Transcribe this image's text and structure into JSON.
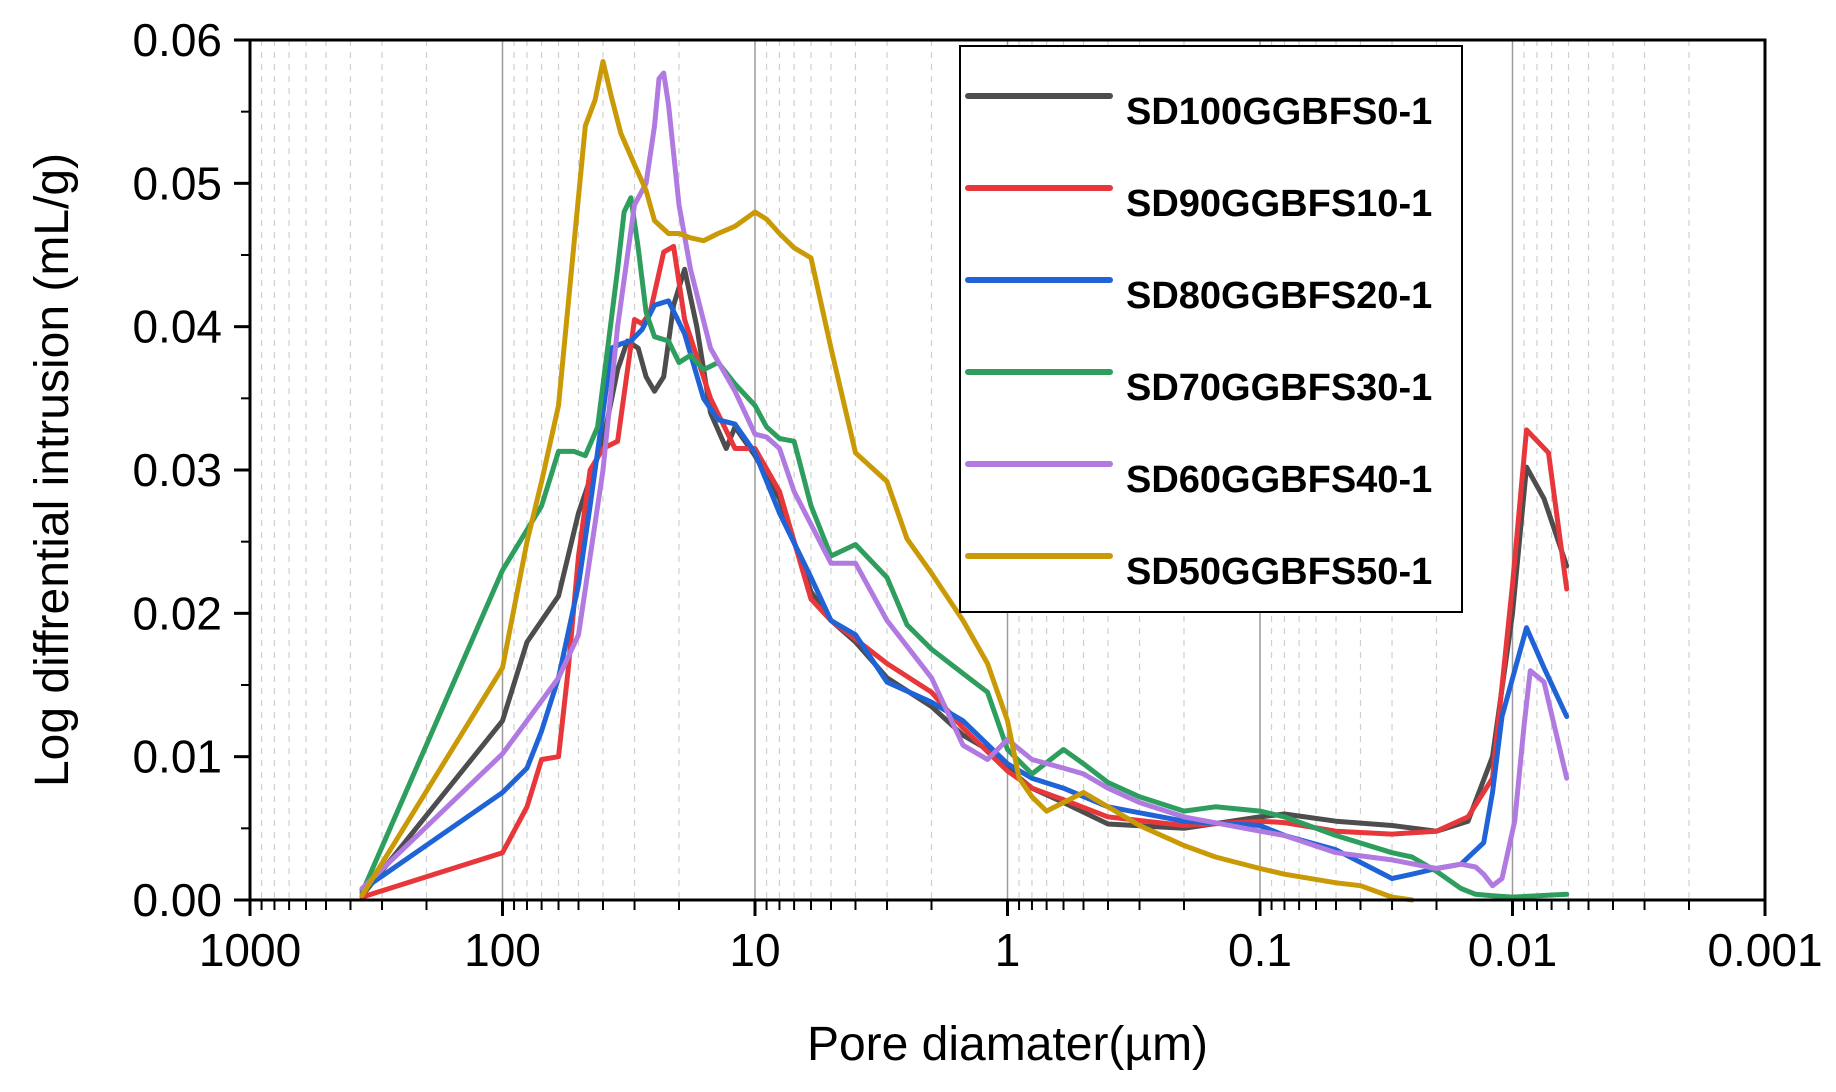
{
  "chart_data": {
    "type": "line",
    "xlabel": "Pore diamater(µm)",
    "ylabel": "Log diffrential intrusion (mL/g)",
    "x_scale": "log",
    "x_reversed": true,
    "xlim": [
      1000,
      0.001
    ],
    "ylim": [
      0,
      0.06
    ],
    "x_ticks": [
      {
        "value": 1000,
        "label": "1000"
      },
      {
        "value": 100,
        "label": "100"
      },
      {
        "value": 10,
        "label": "10"
      },
      {
        "value": 1,
        "label": "1"
      },
      {
        "value": 0.1,
        "label": "0.1"
      },
      {
        "value": 0.01,
        "label": "0.01"
      },
      {
        "value": 0.001,
        "label": "0.001"
      }
    ],
    "y_ticks": [
      {
        "value": 0,
        "label": "0.00"
      },
      {
        "value": 0.01,
        "label": "0.01"
      },
      {
        "value": 0.02,
        "label": "0.02"
      },
      {
        "value": 0.03,
        "label": "0.03"
      },
      {
        "value": 0.04,
        "label": "0.04"
      },
      {
        "value": 0.05,
        "label": "0.05"
      },
      {
        "value": 0.06,
        "label": "0.06"
      }
    ],
    "grid": true,
    "legend_position": "top-right",
    "series": [
      {
        "name": "SD100GGBFS0-1",
        "color": "#4d4d4d",
        "points": [
          [
            360,
            0.0003
          ],
          [
            100,
            0.0125
          ],
          [
            80,
            0.018
          ],
          [
            60,
            0.0212
          ],
          [
            50,
            0.027
          ],
          [
            40,
            0.032
          ],
          [
            35,
            0.037
          ],
          [
            32,
            0.039
          ],
          [
            29,
            0.0385
          ],
          [
            27,
            0.0365
          ],
          [
            25,
            0.0355
          ],
          [
            23,
            0.0365
          ],
          [
            21,
            0.0415
          ],
          [
            19,
            0.044
          ],
          [
            17,
            0.04
          ],
          [
            15,
            0.034
          ],
          [
            13,
            0.0315
          ],
          [
            12,
            0.033
          ],
          [
            10,
            0.031
          ],
          [
            8,
            0.028
          ],
          [
            6,
            0.0215
          ],
          [
            5,
            0.0195
          ],
          [
            4,
            0.018
          ],
          [
            3,
            0.0155
          ],
          [
            2,
            0.0135
          ],
          [
            1.5,
            0.0115
          ],
          [
            1.2,
            0.0105
          ],
          [
            1,
            0.0092
          ],
          [
            0.8,
            0.0078
          ],
          [
            0.6,
            0.0068
          ],
          [
            0.4,
            0.0053
          ],
          [
            0.2,
            0.005
          ],
          [
            0.1,
            0.0058
          ],
          [
            0.08,
            0.006
          ],
          [
            0.05,
            0.0055
          ],
          [
            0.03,
            0.0052
          ],
          [
            0.02,
            0.0048
          ],
          [
            0.015,
            0.0055
          ],
          [
            0.012,
            0.01
          ],
          [
            0.01,
            0.02
          ],
          [
            0.0088,
            0.0302
          ],
          [
            0.0075,
            0.028
          ],
          [
            0.0061,
            0.0233
          ]
        ]
      },
      {
        "name": "SD90GGBFS10-1",
        "color": "#e8373b",
        "points": [
          [
            360,
            0.0002
          ],
          [
            100,
            0.0033
          ],
          [
            80,
            0.0065
          ],
          [
            70,
            0.0098
          ],
          [
            60,
            0.01
          ],
          [
            55,
            0.016
          ],
          [
            50,
            0.024
          ],
          [
            45,
            0.03
          ],
          [
            40,
            0.0315
          ],
          [
            35,
            0.032
          ],
          [
            30,
            0.0405
          ],
          [
            28,
            0.0402
          ],
          [
            26,
            0.041
          ],
          [
            23,
            0.0452
          ],
          [
            21,
            0.0456
          ],
          [
            19,
            0.0405
          ],
          [
            15,
            0.035
          ],
          [
            12,
            0.0315
          ],
          [
            10,
            0.0315
          ],
          [
            8,
            0.0285
          ],
          [
            6,
            0.021
          ],
          [
            5,
            0.0195
          ],
          [
            4,
            0.0182
          ],
          [
            3,
            0.0165
          ],
          [
            2,
            0.0145
          ],
          [
            1.5,
            0.012
          ],
          [
            1,
            0.009
          ],
          [
            0.8,
            0.0078
          ],
          [
            0.6,
            0.007
          ],
          [
            0.4,
            0.0058
          ],
          [
            0.2,
            0.0052
          ],
          [
            0.1,
            0.0055
          ],
          [
            0.08,
            0.0054
          ],
          [
            0.05,
            0.0048
          ],
          [
            0.03,
            0.0046
          ],
          [
            0.02,
            0.0048
          ],
          [
            0.015,
            0.0058
          ],
          [
            0.012,
            0.0085
          ],
          [
            0.01,
            0.022
          ],
          [
            0.0088,
            0.0328
          ],
          [
            0.0072,
            0.0312
          ],
          [
            0.0061,
            0.0217
          ]
        ]
      },
      {
        "name": "SD80GGBFS20-1",
        "color": "#1f63d6",
        "points": [
          [
            360,
            0.0007
          ],
          [
            100,
            0.0075
          ],
          [
            80,
            0.0092
          ],
          [
            70,
            0.0118
          ],
          [
            60,
            0.0155
          ],
          [
            50,
            0.022
          ],
          [
            45,
            0.0275
          ],
          [
            40,
            0.034
          ],
          [
            37,
            0.0385
          ],
          [
            34,
            0.0388
          ],
          [
            31,
            0.039
          ],
          [
            28,
            0.0398
          ],
          [
            25,
            0.0415
          ],
          [
            22,
            0.0418
          ],
          [
            19,
            0.0395
          ],
          [
            16,
            0.035
          ],
          [
            14,
            0.0335
          ],
          [
            12,
            0.0332
          ],
          [
            10,
            0.0312
          ],
          [
            8,
            0.027
          ],
          [
            6,
            0.0225
          ],
          [
            5,
            0.0195
          ],
          [
            4,
            0.0185
          ],
          [
            3,
            0.0152
          ],
          [
            2,
            0.0138
          ],
          [
            1.5,
            0.0125
          ],
          [
            1,
            0.0095
          ],
          [
            0.8,
            0.0085
          ],
          [
            0.6,
            0.0078
          ],
          [
            0.4,
            0.0065
          ],
          [
            0.2,
            0.0055
          ],
          [
            0.1,
            0.0052
          ],
          [
            0.08,
            0.0045
          ],
          [
            0.05,
            0.0035
          ],
          [
            0.03,
            0.0015
          ],
          [
            0.025,
            0.0018
          ],
          [
            0.02,
            0.0022
          ],
          [
            0.016,
            0.0025
          ],
          [
            0.013,
            0.004
          ],
          [
            0.012,
            0.0075
          ],
          [
            0.011,
            0.0128
          ],
          [
            0.0088,
            0.019
          ],
          [
            0.0075,
            0.0162
          ],
          [
            0.0061,
            0.0128
          ]
        ]
      },
      {
        "name": "SD70GGBFS30-1",
        "color": "#2e9e5e",
        "points": [
          [
            360,
            0.0005
          ],
          [
            100,
            0.023
          ],
          [
            70,
            0.0275
          ],
          [
            60,
            0.0313
          ],
          [
            52,
            0.0313
          ],
          [
            47,
            0.031
          ],
          [
            42,
            0.033
          ],
          [
            38,
            0.039
          ],
          [
            35,
            0.044
          ],
          [
            33,
            0.048
          ],
          [
            31,
            0.049
          ],
          [
            29,
            0.0455
          ],
          [
            27,
            0.041
          ],
          [
            25,
            0.0393
          ],
          [
            22,
            0.039
          ],
          [
            20,
            0.0375
          ],
          [
            18,
            0.038
          ],
          [
            16,
            0.037
          ],
          [
            14,
            0.0375
          ],
          [
            12,
            0.036
          ],
          [
            10,
            0.0345
          ],
          [
            9,
            0.033
          ],
          [
            8,
            0.0322
          ],
          [
            7,
            0.032
          ],
          [
            6,
            0.0275
          ],
          [
            5,
            0.024
          ],
          [
            4,
            0.0248
          ],
          [
            3,
            0.0225
          ],
          [
            2.5,
            0.0192
          ],
          [
            2,
            0.0175
          ],
          [
            1.5,
            0.0158
          ],
          [
            1.2,
            0.0145
          ],
          [
            1,
            0.0105
          ],
          [
            0.8,
            0.0088
          ],
          [
            0.6,
            0.0105
          ],
          [
            0.5,
            0.0095
          ],
          [
            0.4,
            0.0082
          ],
          [
            0.3,
            0.0072
          ],
          [
            0.2,
            0.0062
          ],
          [
            0.15,
            0.0065
          ],
          [
            0.1,
            0.0062
          ],
          [
            0.08,
            0.0058
          ],
          [
            0.05,
            0.0045
          ],
          [
            0.03,
            0.0033
          ],
          [
            0.025,
            0.003
          ],
          [
            0.02,
            0.002
          ],
          [
            0.016,
            0.0008
          ],
          [
            0.014,
            0.0004
          ],
          [
            0.012,
            0.0003
          ],
          [
            0.01,
            0.0002
          ],
          [
            0.0061,
            0.0004
          ]
        ]
      },
      {
        "name": "SD60GGBFS40-1",
        "color": "#b07ae0",
        "points": [
          [
            360,
            0.0008
          ],
          [
            100,
            0.0102
          ],
          [
            80,
            0.0125
          ],
          [
            60,
            0.0155
          ],
          [
            50,
            0.0185
          ],
          [
            40,
            0.03
          ],
          [
            35,
            0.04
          ],
          [
            30,
            0.0485
          ],
          [
            27,
            0.05
          ],
          [
            25,
            0.054
          ],
          [
            24,
            0.0573
          ],
          [
            23,
            0.0577
          ],
          [
            22,
            0.0555
          ],
          [
            20,
            0.0485
          ],
          [
            18,
            0.044
          ],
          [
            15,
            0.0385
          ],
          [
            12,
            0.0355
          ],
          [
            10,
            0.0325
          ],
          [
            9,
            0.0323
          ],
          [
            8,
            0.0315
          ],
          [
            7,
            0.0285
          ],
          [
            5,
            0.0235
          ],
          [
            4,
            0.0235
          ],
          [
            3,
            0.0195
          ],
          [
            2,
            0.0155
          ],
          [
            1.5,
            0.0108
          ],
          [
            1.2,
            0.0098
          ],
          [
            1,
            0.0112
          ],
          [
            0.8,
            0.0098
          ],
          [
            0.6,
            0.0092
          ],
          [
            0.5,
            0.0088
          ],
          [
            0.4,
            0.0078
          ],
          [
            0.3,
            0.0068
          ],
          [
            0.2,
            0.0058
          ],
          [
            0.1,
            0.0048
          ],
          [
            0.08,
            0.0045
          ],
          [
            0.05,
            0.0033
          ],
          [
            0.03,
            0.0028
          ],
          [
            0.02,
            0.0022
          ],
          [
            0.016,
            0.0025
          ],
          [
            0.014,
            0.0023
          ],
          [
            0.013,
            0.0018
          ],
          [
            0.012,
            0.001
          ],
          [
            0.011,
            0.0015
          ],
          [
            0.0098,
            0.0055
          ],
          [
            0.009,
            0.0122
          ],
          [
            0.0085,
            0.016
          ],
          [
            0.0075,
            0.0152
          ],
          [
            0.0061,
            0.0085
          ]
        ]
      },
      {
        "name": "SD50GGBFS50-1",
        "color": "#c99a06",
        "points": [
          [
            360,
            0.0003
          ],
          [
            100,
            0.0162
          ],
          [
            80,
            0.025
          ],
          [
            70,
            0.0292
          ],
          [
            60,
            0.0345
          ],
          [
            55,
            0.0415
          ],
          [
            47,
            0.054
          ],
          [
            43,
            0.0558
          ],
          [
            40,
            0.0585
          ],
          [
            37,
            0.056
          ],
          [
            34,
            0.0535
          ],
          [
            30,
            0.0513
          ],
          [
            27,
            0.0495
          ],
          [
            25,
            0.0474
          ],
          [
            22,
            0.0465
          ],
          [
            20,
            0.0465
          ],
          [
            18,
            0.0462
          ],
          [
            16,
            0.046
          ],
          [
            14,
            0.0465
          ],
          [
            12,
            0.047
          ],
          [
            10,
            0.048
          ],
          [
            9,
            0.0475
          ],
          [
            8,
            0.0465
          ],
          [
            7,
            0.0455
          ],
          [
            6,
            0.0448
          ],
          [
            5,
            0.0385
          ],
          [
            4,
            0.0312
          ],
          [
            3,
            0.0292
          ],
          [
            2.5,
            0.0252
          ],
          [
            2,
            0.0228
          ],
          [
            1.5,
            0.0195
          ],
          [
            1.2,
            0.0165
          ],
          [
            1,
            0.0125
          ],
          [
            0.9,
            0.0085
          ],
          [
            0.8,
            0.0072
          ],
          [
            0.7,
            0.0062
          ],
          [
            0.6,
            0.0068
          ],
          [
            0.5,
            0.0075
          ],
          [
            0.4,
            0.0065
          ],
          [
            0.3,
            0.0052
          ],
          [
            0.2,
            0.0038
          ],
          [
            0.15,
            0.003
          ],
          [
            0.1,
            0.0022
          ],
          [
            0.08,
            0.0018
          ],
          [
            0.05,
            0.0012
          ],
          [
            0.04,
            0.001
          ],
          [
            0.03,
            0.0002
          ],
          [
            0.025,
            0.0
          ]
        ]
      }
    ]
  }
}
